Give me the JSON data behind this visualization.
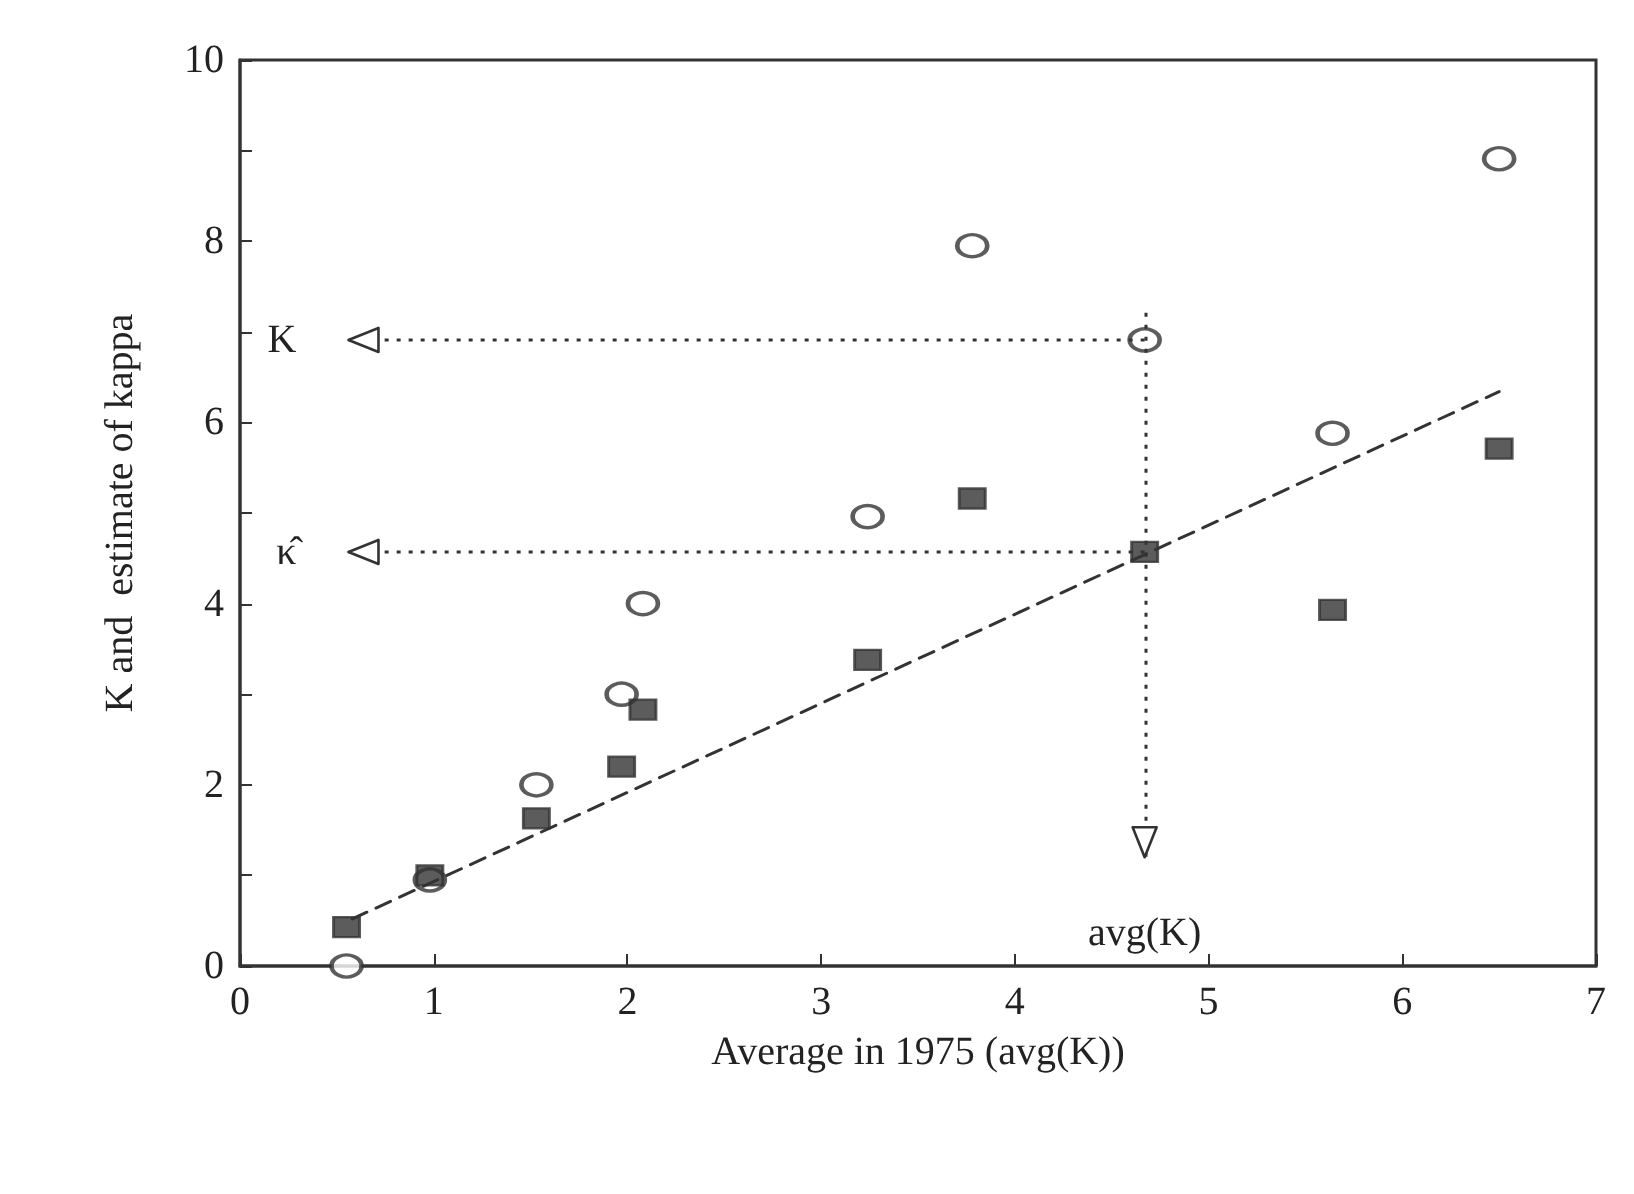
{
  "chart_data": {
    "type": "scatter",
    "xlabel": "Average in 1975 (avg(K))",
    "ylabel": "K and  estimate of kappa",
    "xlim": [
      0,
      7
    ],
    "xticks": [
      0,
      1,
      2,
      3,
      4,
      5,
      6,
      7
    ],
    "ylim": [
      0,
      10
    ],
    "yticks": [
      0,
      {
        "value": 1,
        "label": null
      },
      2,
      {
        "value": 3,
        "label": null
      },
      4,
      {
        "value": 5,
        "label": null
      },
      6,
      {
        "value": 7,
        "label": null
      },
      8,
      {
        "value": 9,
        "label": null
      },
      10
    ],
    "grid": false,
    "series": [
      {
        "marker": "circle",
        "color": "#333333",
        "x": [
          0.55,
          0.98,
          1.53,
          1.97,
          2.08,
          3.24,
          3.78,
          4.67,
          5.64,
          6.5
        ],
        "values": [
          0.0,
          0.95,
          2.0,
          3.0,
          4.0,
          4.96,
          7.95,
          6.91,
          5.88,
          8.91
        ]
      },
      {
        "marker": "square",
        "color": "#333333",
        "x": [
          0.55,
          0.98,
          1.53,
          1.97,
          2.08,
          3.24,
          3.78,
          4.67,
          5.64,
          6.5
        ],
        "values": [
          0.43,
          1.0,
          1.63,
          2.2,
          2.83,
          3.38,
          5.16,
          4.57,
          3.93,
          5.71
        ]
      },
      {
        "type": "line",
        "marker": "none",
        "line_style": "dashed",
        "color": "#333333",
        "x": [
          0.58,
          6.5
        ],
        "values": [
          0.52,
          6.34
        ]
      }
    ],
    "ref_lines": [
      {
        "axis": "y",
        "value": 6.91,
        "label": "K",
        "line_style": "dotted",
        "color": "#333333"
      },
      {
        "axis": "y",
        "value": 4.57,
        "label": "κ̂",
        "line_style": "dotted",
        "color": "#333333"
      },
      {
        "axis": "x",
        "value": 4.67,
        "label": "avg(K)",
        "line_style": "dotted",
        "color": "#333333"
      }
    ]
  }
}
